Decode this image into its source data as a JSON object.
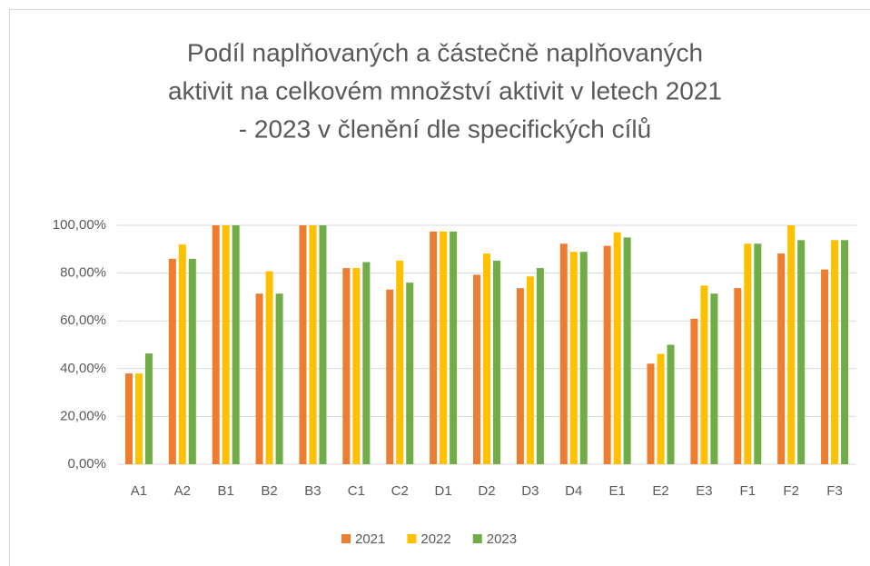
{
  "chart_data": {
    "type": "bar",
    "title": [
      "Podíl naplňovaných a částečně naplňovaných",
      "aktivit na celkovém množství aktivit v letech 2021",
      "- 2023 v členění dle specifických cílů"
    ],
    "categories": [
      "A1",
      "A2",
      "B1",
      "B2",
      "B3",
      "C1",
      "C2",
      "D1",
      "D2",
      "D3",
      "D4",
      "E1",
      "E2",
      "E3",
      "F1",
      "F2",
      "F3"
    ],
    "series": [
      {
        "name": "2021",
        "color": "#ed7d31",
        "values": [
          38,
          86,
          100,
          71.4,
          100,
          82.1,
          73.1,
          97.4,
          79.3,
          73.7,
          92.3,
          91.4,
          42.1,
          60.9,
          73.7,
          88.2,
          81.5
        ]
      },
      {
        "name": "2022",
        "color": "#ffc000",
        "values": [
          38,
          92,
          100,
          80.8,
          100,
          82.1,
          85.2,
          97.4,
          88.2,
          78.6,
          88.9,
          97.1,
          46.2,
          74.8,
          92.3,
          100,
          93.8
        ]
      },
      {
        "name": "2023",
        "color": "#70ad47",
        "values": [
          46.4,
          86,
          100,
          71.4,
          100,
          84.6,
          76,
          97.4,
          85.2,
          82.1,
          88.9,
          94.9,
          50,
          71.4,
          92.3,
          93.8,
          93.8
        ]
      }
    ],
    "ylim": [
      0,
      100
    ],
    "yticks": [
      {
        "value": 0,
        "label": "0,00%"
      },
      {
        "value": 20,
        "label": "20,00%"
      },
      {
        "value": 40,
        "label": "40,00%"
      },
      {
        "value": 60,
        "label": "60,00%"
      },
      {
        "value": 80,
        "label": "80,00%"
      },
      {
        "value": 100,
        "label": "100,00%"
      }
    ],
    "grid": true,
    "legend": "bottom"
  }
}
